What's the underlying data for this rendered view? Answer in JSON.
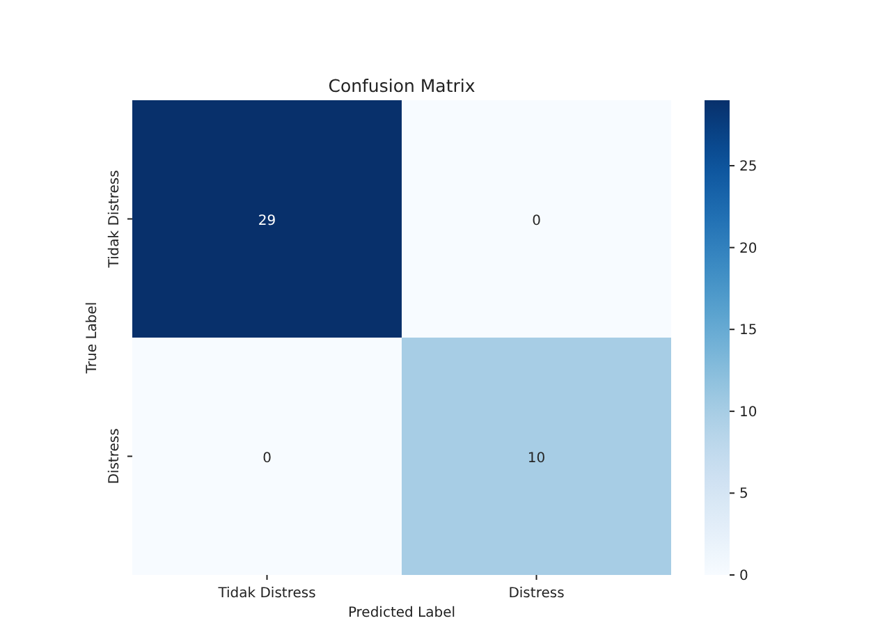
{
  "chart_data": {
    "type": "heatmap",
    "title": "Confusion Matrix",
    "xlabel": "Predicted Label",
    "ylabel": "True Label",
    "categories": [
      "Tidak Distress",
      "Distress"
    ],
    "y_categories": [
      "Tidak Distress",
      "Distress"
    ],
    "cells": [
      [
        29,
        0
      ],
      [
        0,
        10
      ]
    ],
    "clim": [
      0,
      29
    ],
    "cticks": [
      0,
      5,
      10,
      15,
      20,
      25
    ],
    "data_labels": true
  }
}
